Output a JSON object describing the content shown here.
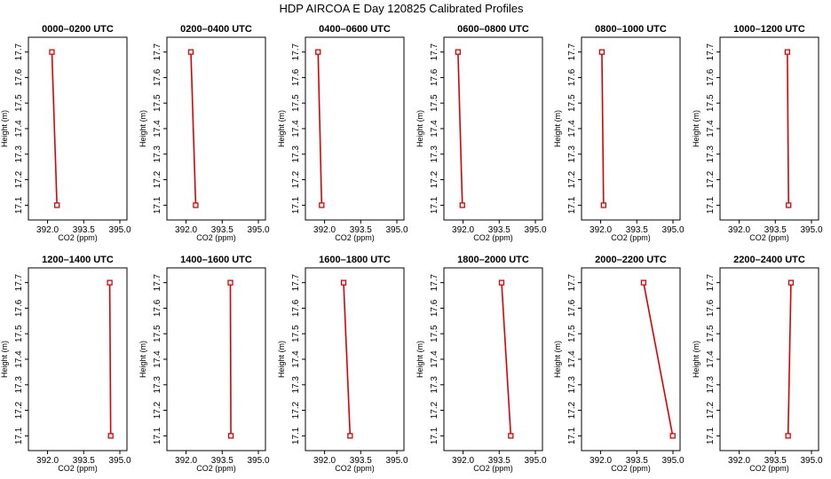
{
  "title": "HDP AIRCOA E  Day 120825  Calibrated Profiles",
  "colors": {
    "series": "#dd0000",
    "axis": "#000000",
    "background": "#ffffff"
  },
  "chart_data": [
    {
      "type": "line",
      "title": "0000–0200 UTC",
      "xlabel": "CO2 (ppm)",
      "ylabel": "Height (m)",
      "xlim": [
        391.5,
        395.0
      ],
      "ylim": [
        17.07,
        17.73
      ],
      "xticks": [
        "392.0",
        "393.5",
        "395.0"
      ],
      "yticks": [
        "17.1",
        "17.2",
        "17.3",
        "17.4",
        "17.5",
        "17.6",
        "17.7"
      ],
      "series": [
        {
          "x": [
            392.18,
            392.39
          ],
          "y": [
            17.7,
            17.1
          ]
        }
      ]
    },
    {
      "type": "line",
      "title": "0200–0400 UTC",
      "xlabel": "CO2 (ppm)",
      "ylabel": "Height (m)",
      "xlim": [
        391.5,
        395.0
      ],
      "ylim": [
        17.07,
        17.73
      ],
      "xticks": [
        "392.0",
        "393.5",
        "395.0"
      ],
      "yticks": [
        "17.1",
        "17.2",
        "17.3",
        "17.4",
        "17.5",
        "17.6",
        "17.7"
      ],
      "series": [
        {
          "x": [
            392.2,
            392.4
          ],
          "y": [
            17.7,
            17.1
          ]
        }
      ]
    },
    {
      "type": "line",
      "title": "0400–0600 UTC",
      "xlabel": "CO2 (ppm)",
      "ylabel": "Height (m)",
      "xlim": [
        391.5,
        395.0
      ],
      "ylim": [
        17.07,
        17.73
      ],
      "xticks": [
        "392.0",
        "393.5",
        "395.0"
      ],
      "yticks": [
        "17.1",
        "17.2",
        "17.3",
        "17.4",
        "17.5",
        "17.6",
        "17.7"
      ],
      "series": [
        {
          "x": [
            391.73,
            391.88
          ],
          "y": [
            17.7,
            17.1
          ]
        }
      ]
    },
    {
      "type": "line",
      "title": "0600–0800 UTC",
      "xlabel": "CO2 (ppm)",
      "ylabel": "Height (m)",
      "xlim": [
        391.5,
        395.0
      ],
      "ylim": [
        17.07,
        17.73
      ],
      "xticks": [
        "392.0",
        "393.5",
        "395.0"
      ],
      "yticks": [
        "17.1",
        "17.2",
        "17.3",
        "17.4",
        "17.5",
        "17.6",
        "17.7"
      ],
      "series": [
        {
          "x": [
            391.79,
            391.97
          ],
          "y": [
            17.7,
            17.1
          ]
        }
      ]
    },
    {
      "type": "line",
      "title": "0800–1000 UTC",
      "xlabel": "CO2 (ppm)",
      "ylabel": "Height (m)",
      "xlim": [
        391.5,
        395.0
      ],
      "ylim": [
        17.07,
        17.73
      ],
      "xticks": [
        "392.0",
        "393.5",
        "395.0"
      ],
      "yticks": [
        "17.1",
        "17.2",
        "17.3",
        "17.4",
        "17.5",
        "17.6",
        "17.7"
      ],
      "series": [
        {
          "x": [
            392.05,
            392.12
          ],
          "y": [
            17.7,
            17.1
          ]
        }
      ]
    },
    {
      "type": "line",
      "title": "1000–1200 UTC",
      "xlabel": "CO2 (ppm)",
      "ylabel": "Height (m)",
      "xlim": [
        391.5,
        395.0
      ],
      "ylim": [
        17.07,
        17.73
      ],
      "xticks": [
        "392.0",
        "393.5",
        "395.0"
      ],
      "yticks": [
        "17.1",
        "17.2",
        "17.3",
        "17.4",
        "17.5",
        "17.6",
        "17.7"
      ],
      "series": [
        {
          "x": [
            394.0,
            394.05
          ],
          "y": [
            17.7,
            17.1
          ]
        }
      ]
    },
    {
      "type": "line",
      "title": "1200–1400 UTC",
      "xlabel": "CO2 (ppm)",
      "ylabel": "Height (m)",
      "xlim": [
        391.5,
        395.0
      ],
      "ylim": [
        17.07,
        17.73
      ],
      "xticks": [
        "392.0",
        "393.5",
        "395.0"
      ],
      "yticks": [
        "17.1",
        "17.2",
        "17.3",
        "17.4",
        "17.5",
        "17.6",
        "17.7"
      ],
      "series": [
        {
          "x": [
            394.58,
            394.62
          ],
          "y": [
            17.7,
            17.1
          ]
        }
      ]
    },
    {
      "type": "line",
      "title": "1400–1600 UTC",
      "xlabel": "CO2 (ppm)",
      "ylabel": "Height (m)",
      "xlim": [
        391.5,
        395.0
      ],
      "ylim": [
        17.07,
        17.73
      ],
      "xticks": [
        "392.0",
        "393.5",
        "395.0"
      ],
      "yticks": [
        "17.1",
        "17.2",
        "17.3",
        "17.4",
        "17.5",
        "17.6",
        "17.7"
      ],
      "series": [
        {
          "x": [
            393.84,
            393.86
          ],
          "y": [
            17.7,
            17.1
          ]
        }
      ]
    },
    {
      "type": "line",
      "title": "1600–1800 UTC",
      "xlabel": "CO2 (ppm)",
      "ylabel": "Height (m)",
      "xlim": [
        391.5,
        395.0
      ],
      "ylim": [
        17.07,
        17.73
      ],
      "xticks": [
        "392.0",
        "393.5",
        "395.0"
      ],
      "yticks": [
        "17.1",
        "17.2",
        "17.3",
        "17.4",
        "17.5",
        "17.6",
        "17.7"
      ],
      "series": [
        {
          "x": [
            392.79,
            393.06
          ],
          "y": [
            17.7,
            17.1
          ]
        }
      ]
    },
    {
      "type": "line",
      "title": "1800–2000 UTC",
      "xlabel": "CO2 (ppm)",
      "ylabel": "Height (m)",
      "xlim": [
        391.5,
        395.0
      ],
      "ylim": [
        17.07,
        17.73
      ],
      "xticks": [
        "392.0",
        "393.5",
        "395.0"
      ],
      "yticks": [
        "17.1",
        "17.2",
        "17.3",
        "17.4",
        "17.5",
        "17.6",
        "17.7"
      ],
      "series": [
        {
          "x": [
            393.6,
            393.98
          ],
          "y": [
            17.7,
            17.1
          ]
        }
      ]
    },
    {
      "type": "line",
      "title": "2000–2200 UTC",
      "xlabel": "CO2 (ppm)",
      "ylabel": "Height (m)",
      "xlim": [
        391.5,
        395.0
      ],
      "ylim": [
        17.07,
        17.73
      ],
      "xticks": [
        "392.0",
        "393.5",
        "395.0"
      ],
      "yticks": [
        "17.1",
        "17.2",
        "17.3",
        "17.4",
        "17.5",
        "17.6",
        "17.7"
      ],
      "series": [
        {
          "x": [
            393.78,
            394.99
          ],
          "y": [
            17.7,
            17.1
          ]
        }
      ]
    },
    {
      "type": "line",
      "title": "2200–2400 UTC",
      "xlabel": "CO2 (ppm)",
      "ylabel": "Height (m)",
      "xlim": [
        391.5,
        395.0
      ],
      "ylim": [
        17.07,
        17.73
      ],
      "xticks": [
        "392.0",
        "393.5",
        "395.0"
      ],
      "yticks": [
        "17.1",
        "17.2",
        "17.3",
        "17.4",
        "17.5",
        "17.6",
        "17.7"
      ],
      "series": [
        {
          "x": [
            394.15,
            394.03
          ],
          "y": [
            17.7,
            17.1
          ]
        }
      ]
    }
  ]
}
